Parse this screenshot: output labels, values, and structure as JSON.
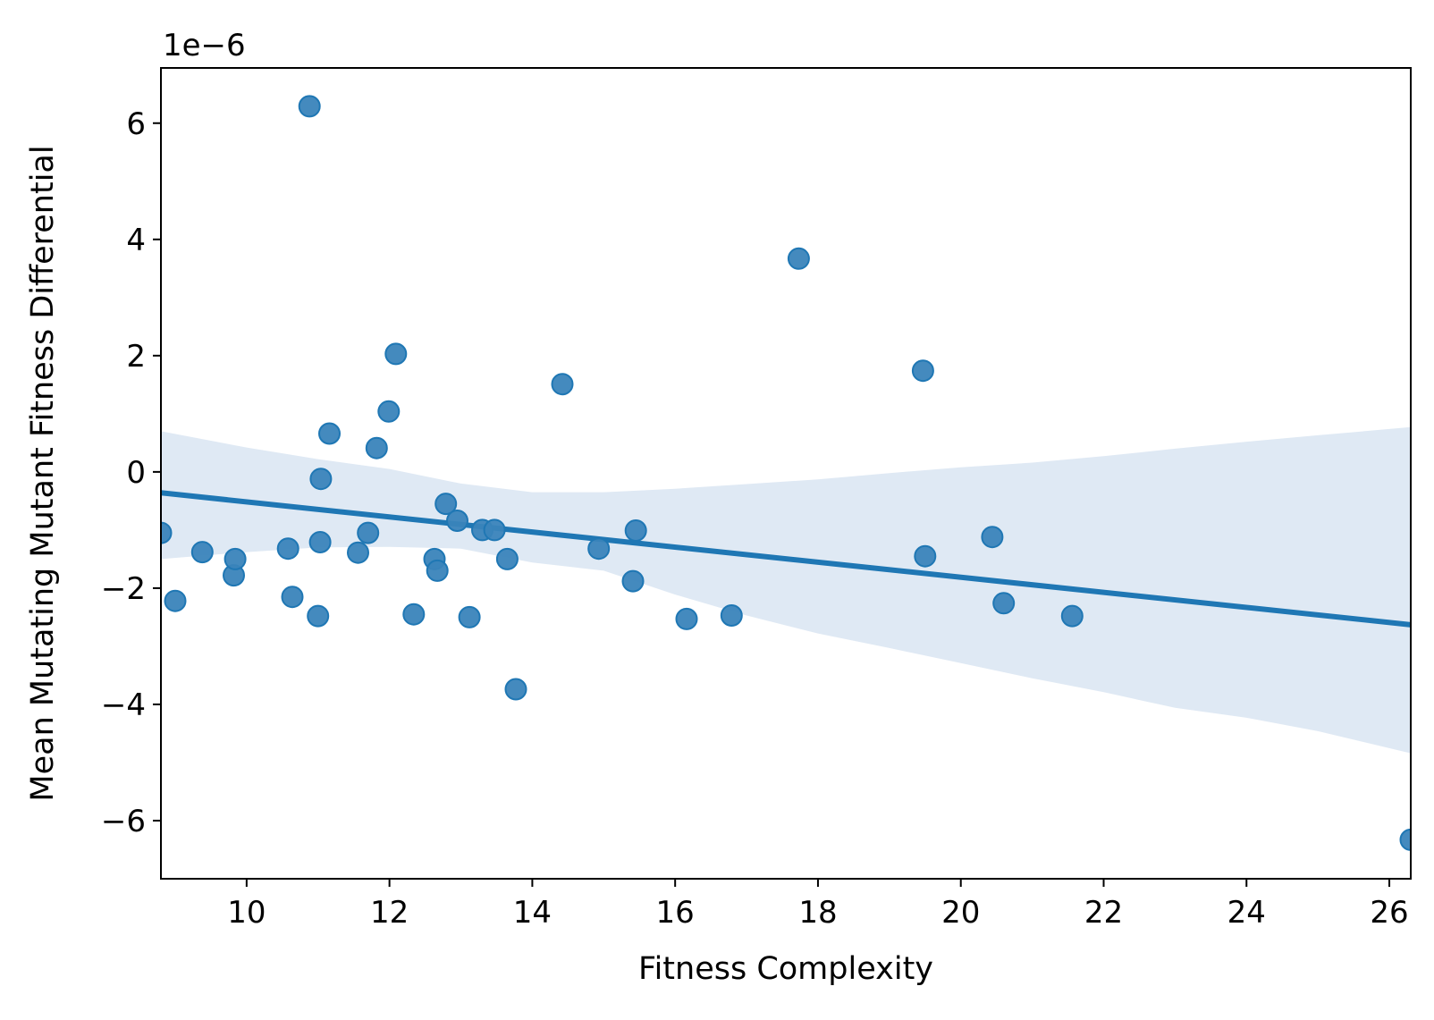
{
  "chart_data": {
    "type": "scatter",
    "xlabel": "Fitness Complexity",
    "ylabel": "Mean Mutating Mutant Fitness Differential",
    "y_offset_label": "1e−6",
    "xlim": [
      8.8,
      26.3
    ],
    "ylim": [
      -7.0,
      6.95
    ],
    "xticks": [
      10,
      12,
      14,
      16,
      18,
      20,
      22,
      24,
      26
    ],
    "xtick_labels": [
      "10",
      "12",
      "14",
      "16",
      "18",
      "20",
      "22",
      "24",
      "26"
    ],
    "yticks": [
      -6,
      -4,
      -2,
      0,
      2,
      4,
      6
    ],
    "ytick_labels": [
      "−6",
      "−4",
      "−2",
      "0",
      "2",
      "4",
      "6"
    ],
    "grid": false,
    "legend": "none",
    "colors": {
      "points": "#3a84bb",
      "regression_line": "#1f77b4",
      "confidence_band": "#dfe9f4"
    },
    "points": [
      {
        "x": 8.8,
        "y": -1.05
      },
      {
        "x": 9.0,
        "y": -2.22
      },
      {
        "x": 9.38,
        "y": -1.38
      },
      {
        "x": 9.82,
        "y": -1.78
      },
      {
        "x": 9.84,
        "y": -1.5
      },
      {
        "x": 10.58,
        "y": -1.32
      },
      {
        "x": 10.64,
        "y": -2.15
      },
      {
        "x": 10.88,
        "y": 6.29
      },
      {
        "x": 11.0,
        "y": -2.48
      },
      {
        "x": 11.03,
        "y": -1.21
      },
      {
        "x": 11.04,
        "y": -0.12
      },
      {
        "x": 11.16,
        "y": 0.66
      },
      {
        "x": 11.56,
        "y": -1.39
      },
      {
        "x": 11.7,
        "y": -1.05
      },
      {
        "x": 11.82,
        "y": 0.41
      },
      {
        "x": 11.99,
        "y": 1.04
      },
      {
        "x": 12.09,
        "y": 2.03
      },
      {
        "x": 12.34,
        "y": -2.45
      },
      {
        "x": 12.63,
        "y": -1.5
      },
      {
        "x": 12.67,
        "y": -1.7
      },
      {
        "x": 12.79,
        "y": -0.55
      },
      {
        "x": 12.95,
        "y": -0.84
      },
      {
        "x": 13.12,
        "y": -2.5
      },
      {
        "x": 13.3,
        "y": -1.0
      },
      {
        "x": 13.47,
        "y": -1.0
      },
      {
        "x": 13.65,
        "y": -1.5
      },
      {
        "x": 13.77,
        "y": -3.74
      },
      {
        "x": 14.42,
        "y": 1.51
      },
      {
        "x": 14.93,
        "y": -1.32
      },
      {
        "x": 15.41,
        "y": -1.88
      },
      {
        "x": 15.45,
        "y": -1.01
      },
      {
        "x": 16.16,
        "y": -2.53
      },
      {
        "x": 16.79,
        "y": -2.47
      },
      {
        "x": 17.73,
        "y": 3.67
      },
      {
        "x": 19.47,
        "y": 1.74
      },
      {
        "x": 19.5,
        "y": -1.45
      },
      {
        "x": 20.44,
        "y": -1.12
      },
      {
        "x": 20.6,
        "y": -2.26
      },
      {
        "x": 21.56,
        "y": -2.48
      },
      {
        "x": 26.3,
        "y": -6.33
      }
    ],
    "regression": {
      "x": [
        8.8,
        26.3
      ],
      "y": [
        -0.36,
        -2.63
      ]
    },
    "confidence_band": {
      "x": [
        8.8,
        10,
        11,
        12,
        13,
        14,
        15,
        16,
        17,
        18,
        19,
        20,
        21,
        22,
        23,
        24,
        25,
        26.3
      ],
      "upper": [
        0.7,
        0.42,
        0.22,
        0.05,
        -0.2,
        -0.35,
        -0.35,
        -0.29,
        -0.21,
        -0.13,
        -0.02,
        0.08,
        0.16,
        0.27,
        0.4,
        0.52,
        0.63,
        0.77
      ],
      "lower": [
        -1.5,
        -1.38,
        -1.3,
        -1.29,
        -1.32,
        -1.56,
        -1.7,
        -2.11,
        -2.47,
        -2.78,
        -3.03,
        -3.29,
        -3.55,
        -3.79,
        -4.06,
        -4.23,
        -4.46,
        -4.84
      ]
    }
  }
}
